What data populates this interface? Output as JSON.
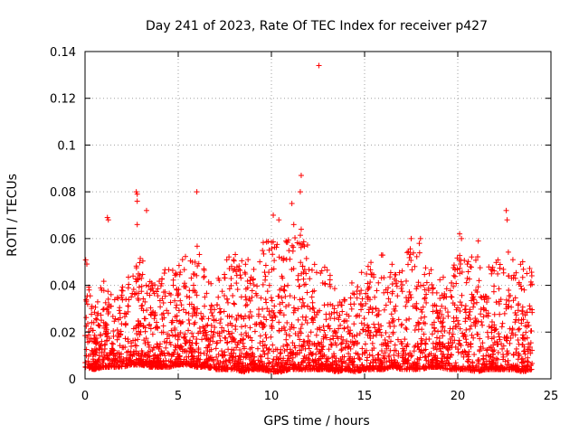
{
  "chart_data": {
    "type": "scatter",
    "title": "Day 241 of 2023, Rate Of TEC Index for receiver p427",
    "xlabel": "GPS time / hours",
    "ylabel": "ROTI / TECUs",
    "xlim": [
      0,
      25
    ],
    "ylim": [
      0,
      0.14
    ],
    "xticks": [
      0,
      5,
      10,
      15,
      20,
      25
    ],
    "yticks": [
      0,
      0.02,
      0.04,
      0.06,
      0.08,
      0.1,
      0.12,
      0.14
    ],
    "xtick_labels": [
      "0",
      "5",
      "10",
      "15",
      "20",
      "25"
    ],
    "ytick_labels": [
      "0",
      "0.02",
      "0.04",
      "0.06",
      "0.08",
      "0.1",
      "0.12",
      "0.14"
    ],
    "grid": true,
    "marker": "+",
    "color": "#ff0000",
    "series": [
      {
        "name": "ROTI",
        "outliers": [
          {
            "x": 12.55,
            "y": 0.134
          },
          {
            "x": 11.6,
            "y": 0.087
          },
          {
            "x": 11.55,
            "y": 0.08
          },
          {
            "x": 2.75,
            "y": 0.08
          },
          {
            "x": 2.8,
            "y": 0.079
          },
          {
            "x": 2.8,
            "y": 0.076
          },
          {
            "x": 6.0,
            "y": 0.08
          },
          {
            "x": 11.1,
            "y": 0.075
          },
          {
            "x": 3.3,
            "y": 0.072
          },
          {
            "x": 22.6,
            "y": 0.072
          },
          {
            "x": 22.65,
            "y": 0.068
          },
          {
            "x": 10.1,
            "y": 0.07
          },
          {
            "x": 1.2,
            "y": 0.069
          },
          {
            "x": 1.25,
            "y": 0.068
          },
          {
            "x": 2.8,
            "y": 0.066
          },
          {
            "x": 10.4,
            "y": 0.068
          },
          {
            "x": 11.2,
            "y": 0.066
          },
          {
            "x": 11.6,
            "y": 0.064
          },
          {
            "x": 20.1,
            "y": 0.062
          },
          {
            "x": 20.2,
            "y": 0.06
          },
          {
            "x": 21.1,
            "y": 0.059
          },
          {
            "x": 17.5,
            "y": 0.06
          },
          {
            "x": 18.0,
            "y": 0.06
          }
        ],
        "envelope": {
          "hours": [
            0.0,
            0.5,
            1.0,
            1.5,
            2.0,
            2.5,
            3.0,
            3.5,
            4.0,
            4.5,
            5.0,
            5.5,
            6.0,
            6.5,
            7.0,
            7.5,
            8.0,
            8.5,
            9.0,
            9.5,
            10.0,
            10.5,
            11.0,
            11.5,
            12.0,
            12.5,
            13.0,
            13.5,
            14.0,
            14.5,
            15.0,
            15.5,
            16.0,
            16.5,
            17.0,
            17.5,
            18.0,
            18.5,
            19.0,
            19.5,
            20.0,
            20.5,
            21.0,
            21.5,
            22.0,
            22.5,
            23.0,
            23.5,
            24.0
          ],
          "min_roti": [
            0.005,
            0.004,
            0.005,
            0.005,
            0.005,
            0.006,
            0.006,
            0.005,
            0.005,
            0.005,
            0.006,
            0.006,
            0.005,
            0.005,
            0.004,
            0.004,
            0.004,
            0.003,
            0.004,
            0.004,
            0.003,
            0.003,
            0.004,
            0.004,
            0.004,
            0.004,
            0.004,
            0.003,
            0.004,
            0.003,
            0.004,
            0.004,
            0.004,
            0.005,
            0.004,
            0.004,
            0.004,
            0.005,
            0.005,
            0.004,
            0.004,
            0.004,
            0.003,
            0.004,
            0.004,
            0.004,
            0.004,
            0.003,
            0.004
          ],
          "max_roti": [
            0.056,
            0.03,
            0.045,
            0.035,
            0.04,
            0.05,
            0.055,
            0.042,
            0.045,
            0.048,
            0.05,
            0.055,
            0.058,
            0.045,
            0.04,
            0.05,
            0.055,
            0.052,
            0.05,
            0.06,
            0.062,
            0.06,
            0.062,
            0.062,
            0.058,
            0.048,
            0.048,
            0.04,
            0.04,
            0.042,
            0.058,
            0.05,
            0.056,
            0.05,
            0.052,
            0.058,
            0.058,
            0.05,
            0.048,
            0.04,
            0.056,
            0.05,
            0.056,
            0.048,
            0.05,
            0.055,
            0.055,
            0.05,
            0.047
          ]
        }
      }
    ]
  }
}
